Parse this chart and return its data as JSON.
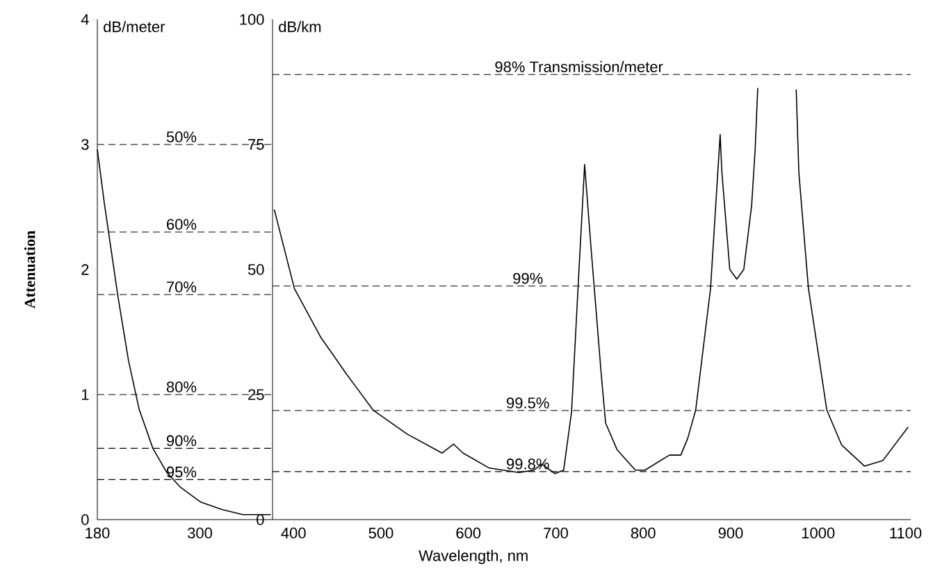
{
  "chart_data": [
    {
      "type": "line",
      "ylabel": "Attenuation",
      "annotations": [
        "dB/meter",
        "50%",
        "60%",
        "70%",
        "80%",
        "90%",
        "95%"
      ],
      "color": "#000000",
      "marker": "none",
      "x": [
        180,
        188,
        204,
        216.5,
        229,
        245,
        261,
        277,
        301,
        326,
        350,
        383
      ],
      "values": [
        2.96,
        2.54,
        1.79,
        1.27,
        0.88,
        0.57,
        0.38,
        0.26,
        0.14,
        0.08,
        0.04,
        0.04
      ],
      "xlim": [
        180,
        385
      ],
      "xticks": [
        180,
        300
      ],
      "ylim": [
        0,
        4
      ],
      "yticks": [
        0,
        1,
        2,
        3,
        4
      ],
      "ref_lines": [
        {
          "axis": "y",
          "value": 3.0,
          "line_style": "dashed"
        },
        {
          "axis": "y",
          "value": 2.3,
          "line_style": "dashed"
        },
        {
          "axis": "y",
          "value": 1.8,
          "line_style": "dashed"
        },
        {
          "axis": "y",
          "value": 1.0,
          "line_style": "dashed"
        },
        {
          "axis": "y",
          "value": 0.57,
          "line_style": "dashed"
        },
        {
          "axis": "y",
          "value": 0.32,
          "line_style": "dashed"
        }
      ]
    },
    {
      "type": "line",
      "xlabel": "Wavelength, nm",
      "annotations": [
        "dB/km",
        "98% Transmission/meter",
        "99%",
        "99.5%",
        "99.8%"
      ],
      "color": "#000000",
      "marker": "none",
      "x": [
        378,
        401,
        431,
        461,
        491,
        530,
        570,
        583,
        594,
        624,
        658,
        675,
        684,
        699,
        709,
        718,
        727,
        733,
        740,
        752,
        757,
        770,
        791,
        802,
        830,
        843,
        851,
        860,
        877,
        888,
        890,
        899,
        907,
        915,
        924,
        928,
        931,
        950,
        975,
        978,
        989,
        1010,
        1027,
        1053,
        1074,
        1103
      ],
      "values": [
        62,
        46.2,
        36.5,
        29,
        21.9,
        17.1,
        13.3,
        15.1,
        13.3,
        10.3,
        9.4,
        9.9,
        11.1,
        9.2,
        9.9,
        21.5,
        51.5,
        71,
        55,
        29,
        19.3,
        14,
        9.9,
        9.9,
        12.9,
        12.9,
        16.3,
        21.9,
        46.2,
        77,
        69.4,
        50,
        48.1,
        50,
        62.8,
        73.9,
        86.3,
        null,
        86,
        69.4,
        46.2,
        21.9,
        14.9,
        10.7,
        11.8,
        18.5
      ],
      "xlim": [
        376,
        1106
      ],
      "xticks": [
        400,
        500,
        600,
        700,
        800,
        900,
        1000,
        1100
      ],
      "ylim": [
        0,
        100
      ],
      "yticks": [
        0,
        25,
        50,
        75,
        100
      ],
      "ref_lines": [
        {
          "axis": "y",
          "value": 89,
          "line_style": "dashed"
        },
        {
          "axis": "y",
          "value": 46.7,
          "line_style": "dashed"
        },
        {
          "axis": "y",
          "value": 21.8,
          "line_style": "dashed"
        },
        {
          "axis": "y",
          "value": 9.6,
          "line_style": "dashed"
        }
      ]
    }
  ]
}
